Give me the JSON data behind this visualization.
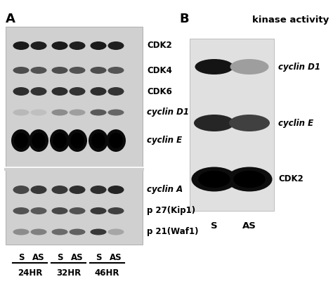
{
  "background_color": "#ffffff",
  "panel_A_label": "A",
  "panel_B_label": "B",
  "panel_B_title": "kinase activity",
  "gel_A_bg": "#d0d0d0",
  "gel_B_bg": "#e0e0e0",
  "band_labels_A": [
    "CDK2",
    "CDK4",
    "CDK6",
    "cyclin D1",
    "cyclin E",
    "cyclin A",
    "p 27(Kip1)",
    "p 21(Waf1)"
  ],
  "band_labels_B": [
    "cyclin D1",
    "cyclin E",
    "CDK2"
  ],
  "x_labels": [
    "S",
    "AS",
    "S",
    "AS",
    "S",
    "AS"
  ],
  "x_group_labels": [
    "24HR",
    "32HR",
    "46HR"
  ],
  "B_x_labels": [
    "S",
    "AS"
  ],
  "label_fontsize": 8.5,
  "bold_label_fontsize": 9
}
